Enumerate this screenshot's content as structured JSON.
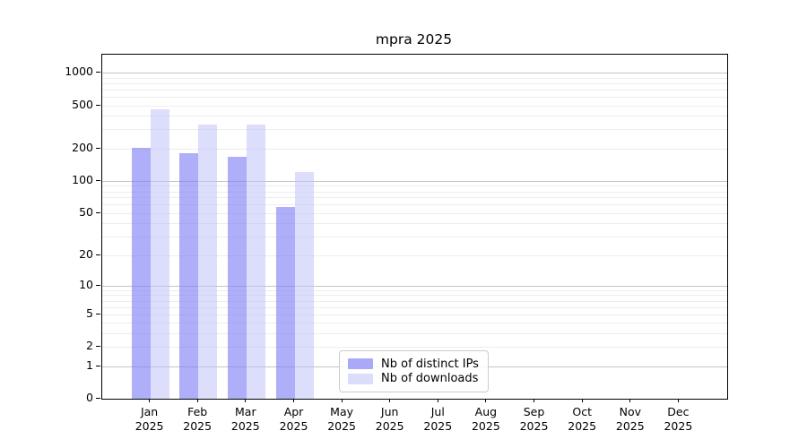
{
  "chart_data": {
    "type": "bar",
    "title": "mpra 2025",
    "categories": [
      "Jan",
      "Feb",
      "Mar",
      "Apr",
      "May",
      "Jun",
      "Jul",
      "Aug",
      "Sep",
      "Oct",
      "Nov",
      "Dec"
    ],
    "category_year": "2025",
    "series": [
      {
        "name": "Nb of distinct IPs",
        "values": [
          203,
          182,
          168,
          57,
          0,
          0,
          0,
          0,
          0,
          0,
          0,
          0
        ],
        "color": "rgba(124, 124, 246, 0.62)",
        "legend_color": "#a9a9f8"
      },
      {
        "name": "Nb of downloads",
        "values": [
          460,
          335,
          335,
          121,
          0,
          0,
          0,
          0,
          0,
          0,
          0,
          0
        ],
        "color": "rgba(193, 193, 250, 0.55)",
        "legend_color": "#dcdcfb"
      }
    ],
    "xlabel": "",
    "ylabel": "",
    "yticks": [
      0,
      1,
      2,
      5,
      10,
      20,
      50,
      100,
      200,
      500,
      1000
    ],
    "scale": "log10(1+y)",
    "ylim": [
      0,
      1460
    ],
    "grid": {
      "minor_values": [
        2,
        3,
        4,
        5,
        6,
        7,
        8,
        9,
        20,
        30,
        40,
        50,
        60,
        70,
        80,
        90,
        200,
        300,
        400,
        500,
        600,
        700,
        800,
        900
      ],
      "major_values": [
        1,
        10,
        100,
        1000
      ],
      "minor_color": "#ededed",
      "major_color": "#c4c4c4"
    },
    "legend_position": "lower center",
    "axis_color": "#000000",
    "background_color": "#ffffff"
  }
}
